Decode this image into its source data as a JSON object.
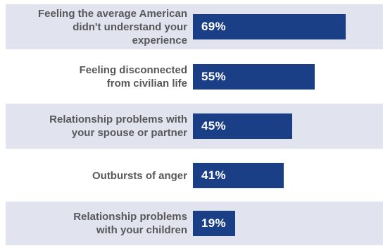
{
  "chart_data": {
    "type": "bar",
    "orientation": "horizontal",
    "categories": [
      "Feeling the average American\ndidn't understand your\nexperience",
      "Feeling disconnected\nfrom civilian life",
      "Relationship problems with\nyour spouse or partner",
      "Outbursts of anger",
      "Relationship problems\nwith your children"
    ],
    "values": [
      69,
      55,
      45,
      41,
      19
    ],
    "value_labels": [
      "69%",
      "55%",
      "45%",
      "41%",
      "19%"
    ],
    "xlim": [
      0,
      86
    ],
    "grid": false,
    "colors": {
      "bar": "#1b3f86",
      "value_text": "#ffffff",
      "label_text": "#58585b",
      "shaded_row": "#e1e4ee"
    }
  }
}
